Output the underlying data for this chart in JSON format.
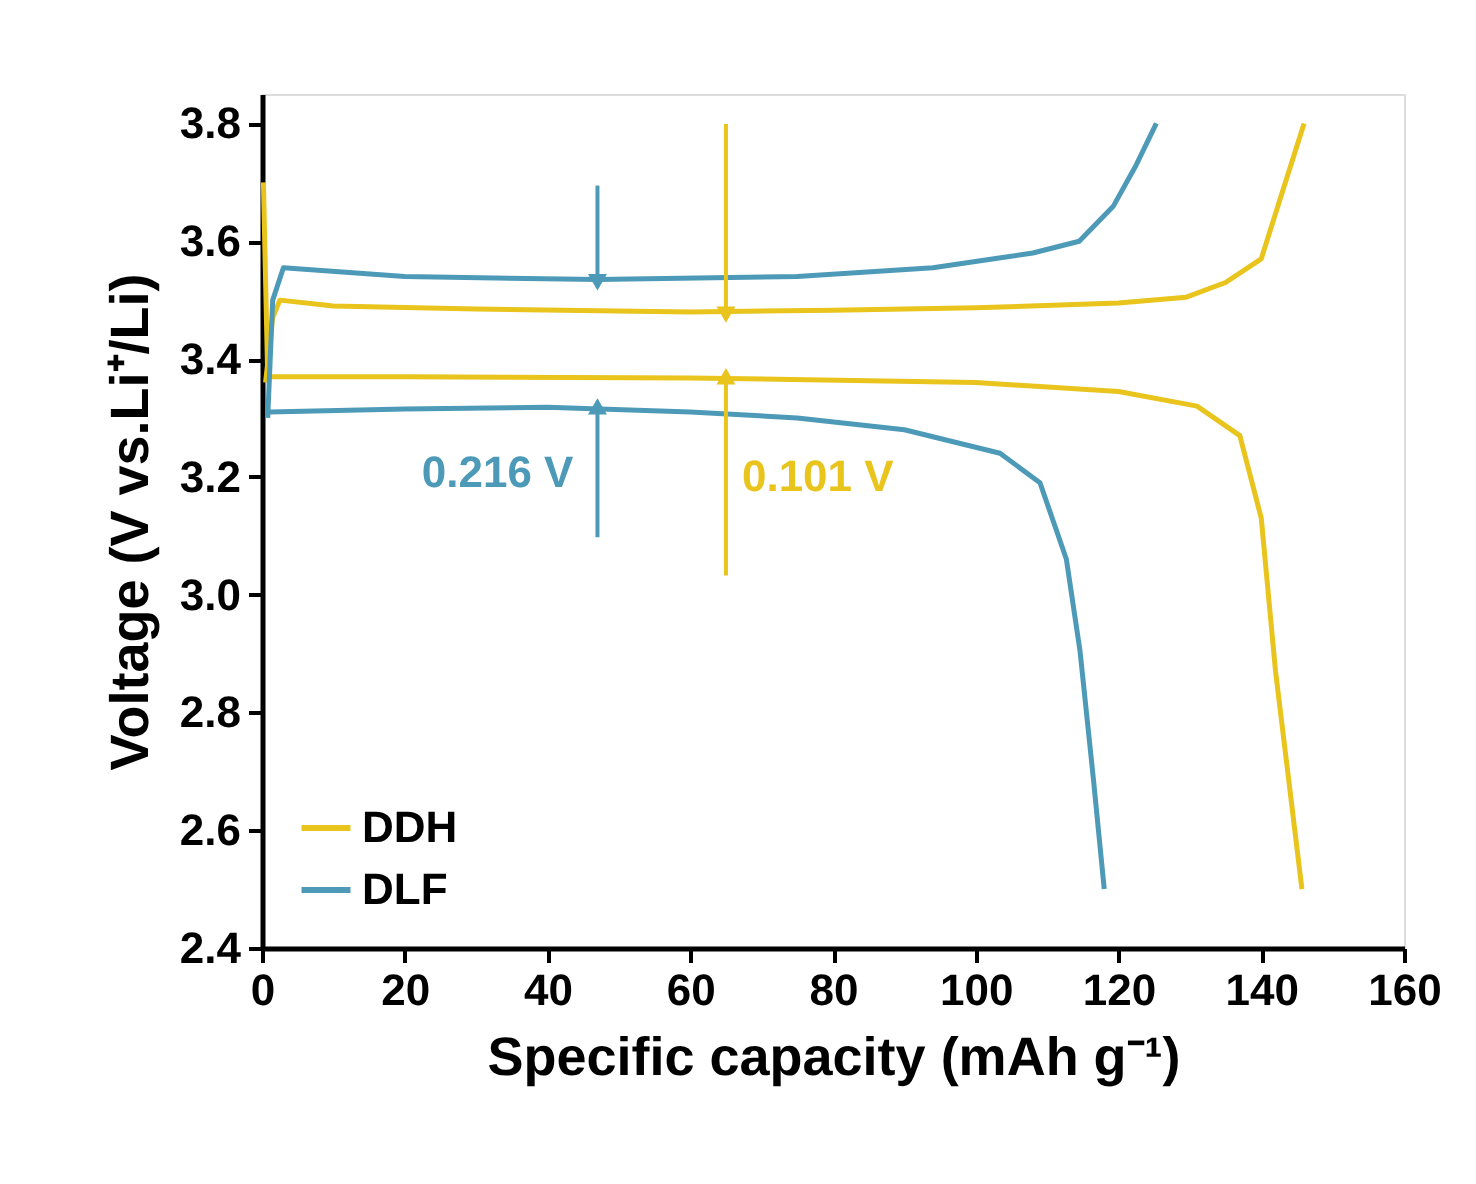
{
  "chart_data": {
    "type": "line",
    "xlabel": "Specific capacity (mAh g⁻¹)",
    "ylabel": "Voltage (V vs.Li⁺/Li)",
    "xlim": [
      0,
      160
    ],
    "ylim": [
      2.4,
      3.85
    ],
    "xticks": [
      0,
      20,
      40,
      60,
      80,
      100,
      120,
      140,
      160
    ],
    "yticks": [
      2.4,
      2.6,
      2.8,
      {
        "value": 3.0,
        "label": "3.0"
      },
      3.2,
      3.4,
      3.6,
      3.8
    ],
    "grid": false,
    "legend": "bottom left",
    "marker": "none",
    "line_style": "solid",
    "series": [
      {
        "name": "DDH",
        "color": "#e8c41c",
        "x": [
          0.5,
          1.5,
          2.5,
          10,
          30,
          60,
          80,
          100,
          120,
          129.5,
          135,
          140,
          142.6,
          146,
          null,
          0.2,
          0.8,
          20,
          60,
          100,
          120,
          131,
          137,
          140,
          142,
          145.7
        ],
        "values": [
          3.36,
          3.47,
          3.5,
          3.49,
          3.485,
          3.48,
          3.483,
          3.487,
          3.495,
          3.505,
          3.53,
          3.57,
          3.67,
          3.8,
          null,
          3.7,
          3.37,
          3.37,
          3.368,
          3.36,
          3.345,
          3.32,
          3.27,
          3.13,
          2.87,
          2.5
        ]
      },
      {
        "name": "DLF",
        "color": "#4d9ab8",
        "x": [
          0.8,
          1.5,
          3,
          20,
          47,
          75,
          94,
          108,
          114.5,
          119.3,
          122.5,
          125.3,
          null,
          1,
          20,
          40,
          60,
          75,
          90,
          103.4,
          109,
          112.7,
          114.6,
          116.5,
          118
        ],
        "values": [
          3.3,
          3.5,
          3.555,
          3.54,
          3.535,
          3.54,
          3.555,
          3.58,
          3.6,
          3.66,
          3.73,
          3.8,
          null,
          3.31,
          3.315,
          3.318,
          3.31,
          3.3,
          3.28,
          3.24,
          3.19,
          3.06,
          2.905,
          2.685,
          2.5
        ]
      }
    ],
    "annotations": [
      {
        "text": "0.101 V",
        "x": 65,
        "y": 3.366
      },
      {
        "text": "0.216 V",
        "x": 47,
        "y": 3.315
      }
    ]
  }
}
